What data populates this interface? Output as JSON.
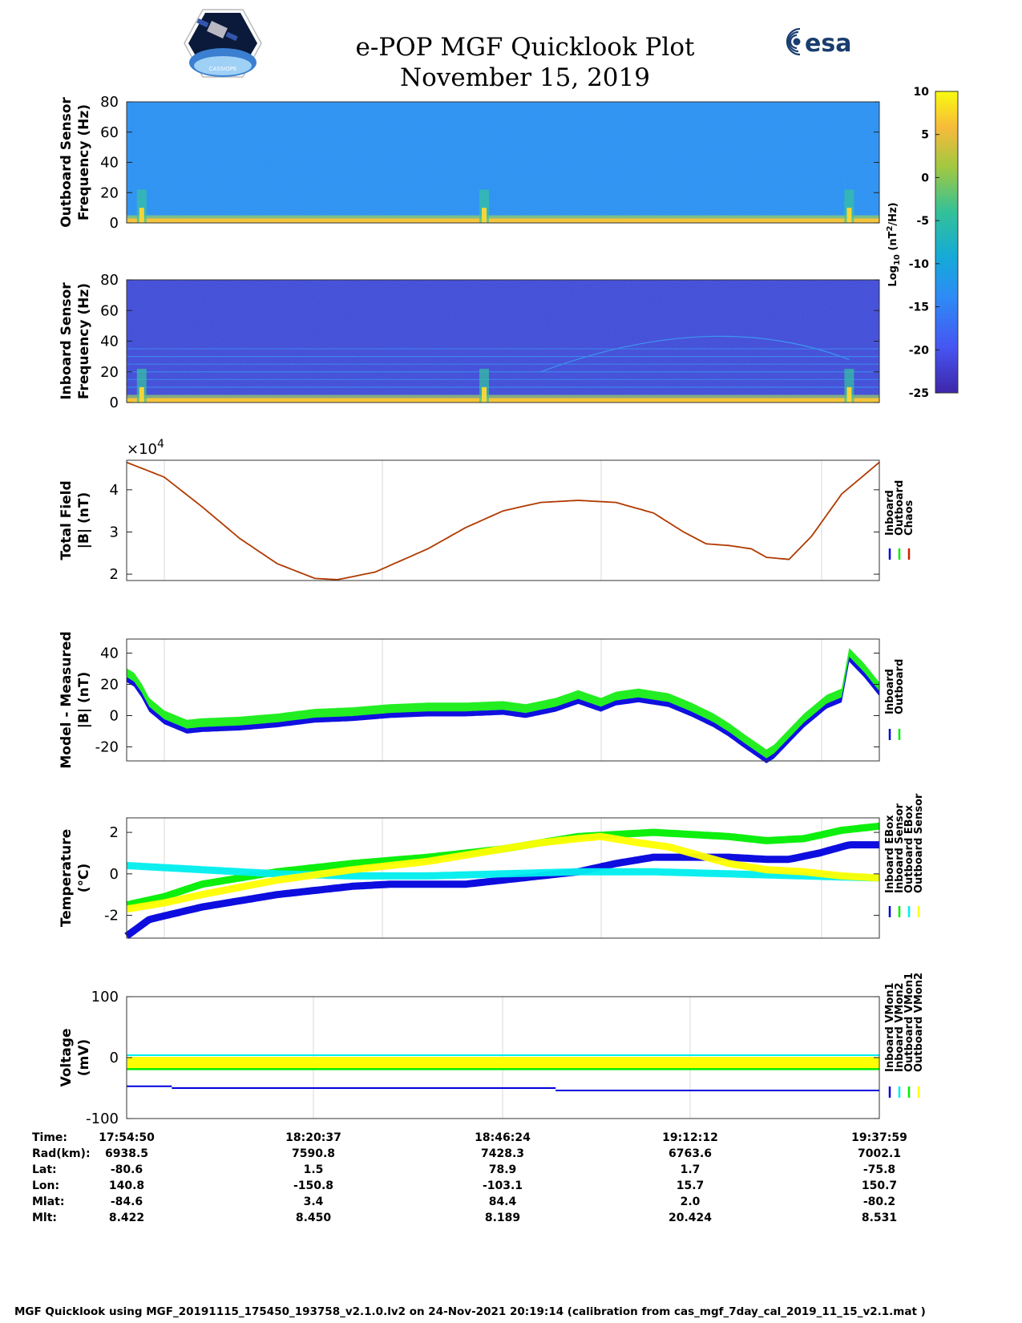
{
  "header": {
    "title": "e-POP MGF Quicklook Plot",
    "date": "November 15, 2019",
    "cassiope_logo_text": "CASSIOPE",
    "esa_logo_text": "esa"
  },
  "colorbar": {
    "ticks": [
      10,
      5,
      0,
      -5,
      -10,
      -15,
      -20,
      -25
    ],
    "label_base": "Log",
    "label_sub": "10",
    "label_rest": " (nT",
    "label_sup": "2",
    "label_end": "/Hz)"
  },
  "chart_data": [
    {
      "type": "heatmap",
      "id": "outboard",
      "ylabel_line1": "Outboard Sensor",
      "ylabel_line2": "Frequency (Hz)",
      "ylim": [
        0,
        80
      ],
      "yticks": [
        80,
        60,
        40,
        20,
        0
      ],
      "background_level": -13,
      "spikes_at_time_fraction": [
        0.02,
        0.475,
        0.96
      ]
    },
    {
      "type": "heatmap",
      "id": "inboard",
      "ylabel_line1": "Inboard Sensor",
      "ylabel_line2": "Frequency (Hz)",
      "ylim": [
        0,
        80
      ],
      "yticks": [
        80,
        60,
        40,
        20,
        0
      ],
      "background_level": -20,
      "harmonic_lines_hz": [
        10,
        15,
        20,
        25,
        30,
        35
      ],
      "spikes_at_time_fraction": [
        0.02,
        0.475,
        0.96
      ]
    },
    {
      "type": "line",
      "id": "total",
      "ylabel_line1": "Total Field",
      "ylabel_line2": "|B| (nT)",
      "exponent_label": "×10",
      "exponent_power": "4",
      "ylim": [
        1.85,
        4.7
      ],
      "yticks": [
        4,
        3,
        2
      ],
      "x": [
        0,
        0.05,
        0.1,
        0.15,
        0.2,
        0.25,
        0.28,
        0.33,
        0.4,
        0.45,
        0.5,
        0.55,
        0.6,
        0.65,
        0.7,
        0.74,
        0.77,
        0.8,
        0.83,
        0.85,
        0.88,
        0.91,
        0.95,
        1.0
      ],
      "values": [
        4.65,
        4.3,
        3.6,
        2.85,
        2.25,
        1.9,
        1.87,
        2.05,
        2.6,
        3.1,
        3.5,
        3.7,
        3.75,
        3.7,
        3.45,
        3.0,
        2.72,
        2.68,
        2.6,
        2.4,
        2.35,
        2.9,
        3.9,
        4.65
      ],
      "legend": [
        "Inboard",
        "Outboard",
        "Chaos"
      ],
      "legend_colors": [
        "#0000dd",
        "#00ee00",
        "#cc2200"
      ],
      "line_color": "#b03a00"
    },
    {
      "type": "line",
      "id": "model",
      "ylabel_line1": "Model - Measured",
      "ylabel_line2": "|B| (nT)",
      "ylim": [
        -29,
        49
      ],
      "yticks": [
        40,
        20,
        0,
        -20
      ],
      "x": [
        0,
        0.01,
        0.02,
        0.03,
        0.05,
        0.08,
        0.1,
        0.15,
        0.2,
        0.25,
        0.3,
        0.35,
        0.4,
        0.45,
        0.5,
        0.53,
        0.55,
        0.57,
        0.6,
        0.63,
        0.65,
        0.68,
        0.72,
        0.75,
        0.78,
        0.8,
        0.82,
        0.85,
        0.86,
        0.88,
        0.9,
        0.93,
        0.95,
        0.96,
        0.98,
        1.0
      ],
      "values": [
        27,
        24,
        17,
        8,
        0,
        -6,
        -5,
        -4,
        -2,
        1,
        2,
        4,
        5,
        5,
        6,
        4,
        6,
        8,
        13,
        8,
        12,
        14,
        11,
        5,
        -2,
        -8,
        -15,
        -25,
        -22,
        -12,
        -2,
        10,
        14,
        40,
        30,
        18
      ],
      "band_width": 4,
      "legend": [
        "Inboard",
        "Outboard"
      ],
      "legend_colors": [
        "#0000dd",
        "#00ee00"
      ]
    },
    {
      "type": "line",
      "id": "temperature",
      "ylabel_line1": "Temperature",
      "ylabel_line2": "(°C)",
      "ylim": [
        -3.1,
        2.7
      ],
      "yticks": [
        2,
        0,
        -2
      ],
      "series": [
        {
          "name": "Inboard EBox",
          "color": "#0000dd",
          "x": [
            0,
            0.03,
            0.1,
            0.2,
            0.3,
            0.35,
            0.4,
            0.45,
            0.5,
            0.55,
            0.6,
            0.65,
            0.7,
            0.75,
            0.8,
            0.85,
            0.88,
            0.92,
            0.96,
            1.0
          ],
          "values": [
            -3.0,
            -2.2,
            -1.6,
            -1.0,
            -0.6,
            -0.5,
            -0.5,
            -0.5,
            -0.3,
            -0.1,
            0.1,
            0.5,
            0.8,
            0.8,
            0.8,
            0.7,
            0.7,
            1.0,
            1.4,
            1.4
          ]
        },
        {
          "name": "Inboard Sensor",
          "color": "#00ee00",
          "x": [
            0,
            0.05,
            0.1,
            0.2,
            0.3,
            0.4,
            0.5,
            0.55,
            0.6,
            0.65,
            0.7,
            0.75,
            0.8,
            0.85,
            0.9,
            0.95,
            1.0
          ],
          "values": [
            -1.5,
            -1.1,
            -0.5,
            0.1,
            0.5,
            0.8,
            1.2,
            1.5,
            1.8,
            1.9,
            2.0,
            1.9,
            1.8,
            1.6,
            1.7,
            2.1,
            2.3
          ]
        },
        {
          "name": "Outboard EBox",
          "color": "#00eeee",
          "x": [
            0,
            0.05,
            0.1,
            0.15,
            0.2,
            0.3,
            0.4,
            0.5,
            0.6,
            0.7,
            0.8,
            0.9,
            1.0
          ],
          "values": [
            0.4,
            0.3,
            0.2,
            0.1,
            0.0,
            -0.1,
            -0.1,
            0.0,
            0.1,
            0.1,
            0.0,
            -0.1,
            -0.2
          ]
        },
        {
          "name": "Outboard Sensor",
          "color": "#ffff00",
          "x": [
            0,
            0.05,
            0.1,
            0.2,
            0.3,
            0.4,
            0.5,
            0.55,
            0.6,
            0.63,
            0.68,
            0.72,
            0.75,
            0.8,
            0.85,
            0.9,
            0.95,
            1.0
          ],
          "values": [
            -1.7,
            -1.4,
            -1.0,
            -0.3,
            0.2,
            0.6,
            1.2,
            1.5,
            1.7,
            1.8,
            1.5,
            1.3,
            1.0,
            0.5,
            0.2,
            0.1,
            -0.1,
            -0.2
          ]
        }
      ],
      "legend": [
        "Inboard EBox",
        "Inboard Sensor",
        "Outboard EBox",
        "Outboard Sensor"
      ],
      "legend_colors": [
        "#0000dd",
        "#00ee00",
        "#00eeee",
        "#ffff00"
      ]
    },
    {
      "type": "line",
      "id": "voltage",
      "ylabel_line1": "Voltage",
      "ylabel_line2": "(mV)",
      "ylim": [
        -100,
        100
      ],
      "yticks": [
        100,
        0,
        -100
      ],
      "series": [
        {
          "name": "Inboard VMon1",
          "color": "#0000dd",
          "segments": [
            [
              0,
              0.06,
              -47
            ],
            [
              0.06,
              0.57,
              -50
            ],
            [
              0.57,
              1.0,
              -54
            ]
          ]
        },
        {
          "name": "Inboard VMon2",
          "color": "#00eeee",
          "segments": [
            [
              0,
              1.0,
              4
            ]
          ]
        },
        {
          "name": "Outboard VMon1",
          "color": "#00ee00",
          "segments": [
            [
              0,
              1.0,
              -18
            ]
          ]
        },
        {
          "name": "Outboard VMon2",
          "color": "#ffff00",
          "segments": [
            [
              0,
              1.0,
              -8
            ]
          ]
        }
      ],
      "legend": [
        "Inboard VMon1",
        "Inboard VMon2",
        "Outboard VMon1",
        "Outboard VMon2"
      ],
      "legend_colors": [
        "#0000dd",
        "#00eeee",
        "#00ee00",
        "#ffff00"
      ]
    }
  ],
  "ephemeris": {
    "labels": [
      "Time:",
      "Rad(km):",
      "Lat:",
      "Lon:",
      "Mlat:",
      "Mlt:"
    ],
    "columns": [
      [
        "17:54:50",
        "6938.5",
        "-80.6",
        "140.8",
        "-84.6",
        "8.422"
      ],
      [
        "18:20:37",
        "7590.8",
        "1.5",
        "-150.8",
        "3.4",
        "8.450"
      ],
      [
        "18:46:24",
        "7428.3",
        "78.9",
        "-103.1",
        "84.4",
        "8.189"
      ],
      [
        "19:12:12",
        "6763.6",
        "1.7",
        "15.7",
        "2.0",
        "20.424"
      ],
      [
        "19:37:59",
        "7002.1",
        "-75.8",
        "150.7",
        "-80.2",
        "8.531"
      ]
    ]
  },
  "footer": "MGF Quicklook using MGF_20191115_175450_193758_v2.1.0.lv2 on 24-Nov-2021 20:19:14 (calibration from cas_mgf_7day_cal_2019_11_15_v2.1.mat )"
}
